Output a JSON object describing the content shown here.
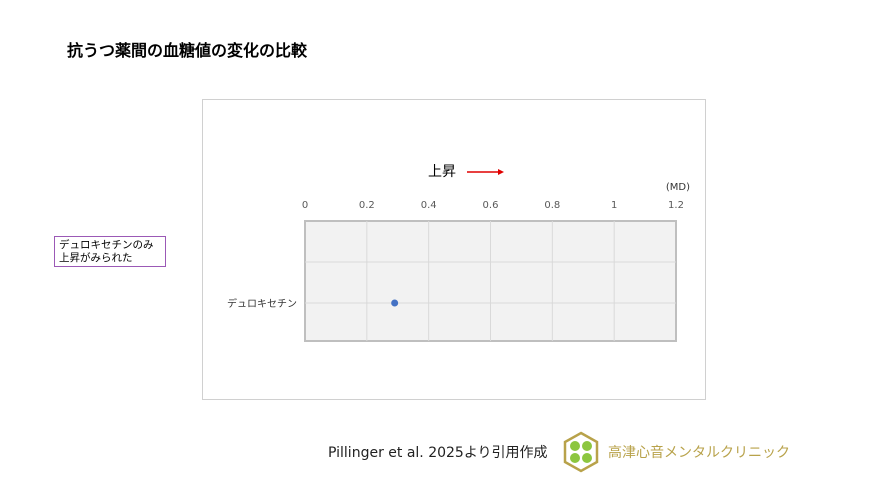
{
  "title": "抗うつ薬間の血糖値の変化の比較",
  "note": [
    "デュロキセチンのみ",
    "上昇がみられた"
  ],
  "footer": {
    "citation": "Pillinger et al. 2025より引用作成",
    "clinic_name": "高津心音メンタルクリニック"
  },
  "chart_data": {
    "type": "scatter",
    "direction_label": "上昇",
    "direction_arrow_color": "#e00000",
    "unit_label": "(MD)",
    "xlim": [
      0,
      1.2
    ],
    "xticks": [
      "0",
      "0.2",
      "0.4",
      "0.6",
      "0.8",
      "1",
      "1.2"
    ],
    "categories": [
      "デュロキセチン"
    ],
    "values": [
      0.29
    ],
    "point_color": "#4472c4",
    "grid": true
  }
}
